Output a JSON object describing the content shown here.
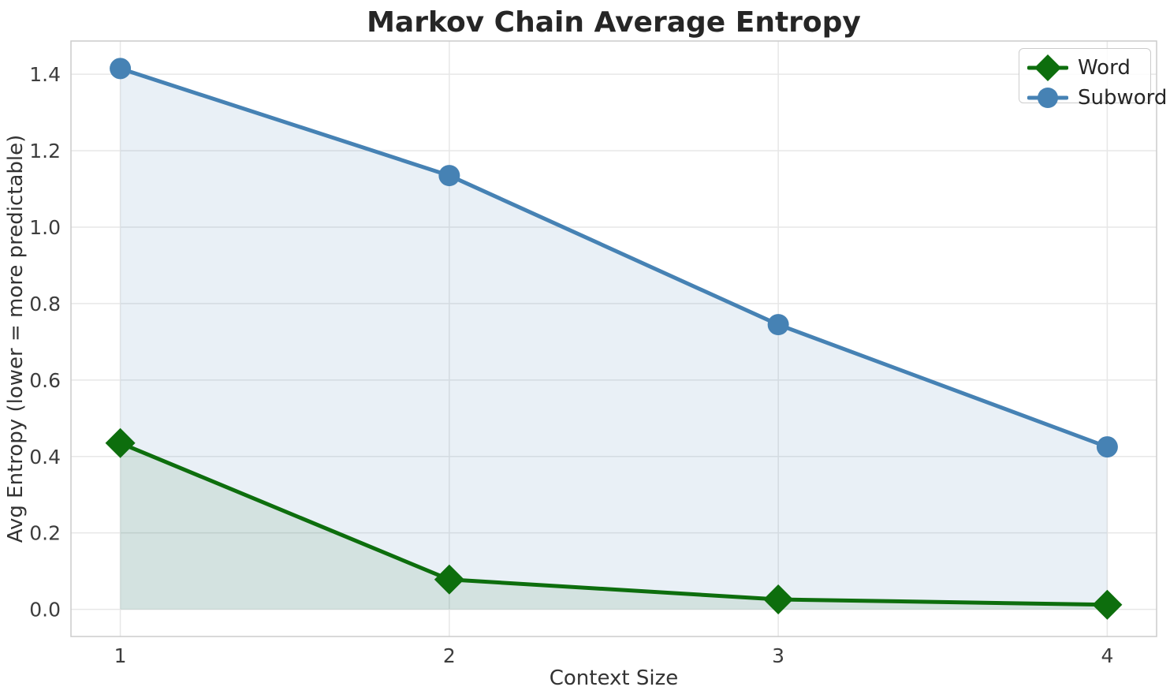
{
  "chart_data": {
    "type": "line",
    "title": "Markov Chain Average Entropy",
    "xlabel": "Context Size",
    "ylabel": "Avg Entropy (lower = more predictable)",
    "x": [
      1,
      2,
      3,
      4
    ],
    "series": [
      {
        "name": "Word",
        "marker": "diamond",
        "color": "#0d6e0d",
        "values": [
          0.435,
          0.078,
          0.026,
          0.012
        ],
        "fill_opacity": 0.1
      },
      {
        "name": "Subword",
        "marker": "circle",
        "color": "#4682b4",
        "values": [
          1.415,
          1.135,
          0.745,
          0.425
        ],
        "fill_opacity": 0.12
      }
    ],
    "fill_to_value": 0,
    "xlim": [
      0.85,
      4.15
    ],
    "ylim": [
      -0.071,
      1.487
    ],
    "xticks": {
      "values": [
        1,
        2,
        3,
        4
      ],
      "labels": [
        "1",
        "2",
        "3",
        "4"
      ]
    },
    "yticks": {
      "values": [
        0.0,
        0.2,
        0.4,
        0.6,
        0.8,
        1.0,
        1.2,
        1.4
      ],
      "labels": [
        "0.0",
        "0.2",
        "0.4",
        "0.6",
        "0.8",
        "1.0",
        "1.2",
        "1.4"
      ]
    },
    "grid": true,
    "legend_position": "top-right",
    "colors": {
      "grid": "#e7e7e7",
      "spine": "#cccccc",
      "plot_background": "#ffffff",
      "figure_background": "#ffffff"
    }
  }
}
